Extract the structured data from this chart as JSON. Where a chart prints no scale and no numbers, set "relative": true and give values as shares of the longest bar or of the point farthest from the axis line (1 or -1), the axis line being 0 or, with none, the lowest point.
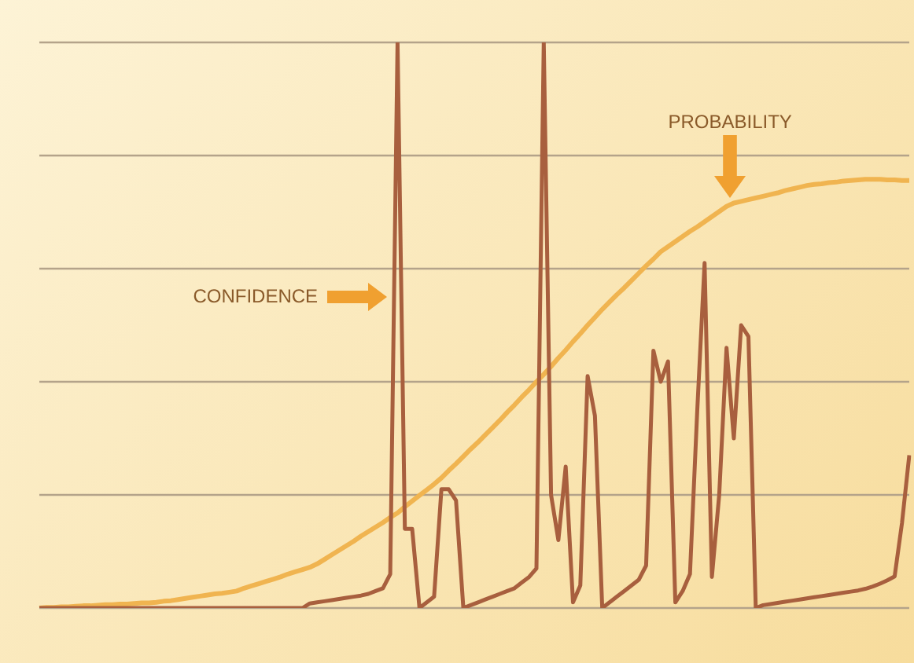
{
  "chart_data": {
    "type": "line",
    "relative": true,
    "legend": false,
    "ref_lines": [
      {
        "axis": "y",
        "value": 0,
        "color": "#b4a38a"
      },
      {
        "axis": "y",
        "value": 0.2,
        "color": "#b4a38a"
      },
      {
        "axis": "y",
        "value": 0.4,
        "color": "#b4a38a"
      },
      {
        "axis": "y",
        "value": 0.6,
        "color": "#b4a38a"
      },
      {
        "axis": "y",
        "value": 0.8,
        "color": "#b4a38a"
      },
      {
        "axis": "y",
        "value": 1,
        "color": "#b4a38a"
      }
    ],
    "marker": "none",
    "categories": [
      null,
      null,
      null,
      null,
      null,
      null,
      null,
      null,
      null,
      null,
      null,
      null,
      null,
      null,
      null,
      null,
      null,
      null,
      null,
      null,
      null,
      null,
      null,
      null,
      null,
      null,
      null,
      null,
      null,
      null,
      null,
      null,
      null,
      null,
      null,
      null,
      null,
      null,
      null,
      null,
      null,
      null,
      null,
      null,
      null,
      null,
      null,
      null,
      null,
      null,
      null,
      null,
      null,
      null,
      null,
      null,
      null,
      null,
      null,
      null,
      null,
      null,
      null,
      null,
      null,
      null,
      null,
      null,
      null,
      null,
      null,
      null,
      null,
      null,
      null,
      null,
      null,
      null,
      null,
      null,
      null,
      null,
      null,
      null,
      null,
      null,
      null,
      null,
      null,
      null,
      null,
      null,
      null,
      null,
      null,
      null,
      null,
      null,
      null,
      null,
      null,
      null,
      null,
      null,
      null,
      null,
      null,
      null,
      null,
      null,
      null,
      null,
      null,
      null,
      null,
      null,
      null,
      null,
      null,
      null
    ],
    "series": [
      {
        "color": "#a85f3e",
        "values": [
          0,
          0,
          0,
          0,
          0,
          0,
          0,
          0,
          0,
          0,
          0,
          0,
          0,
          0,
          0,
          0,
          0,
          0,
          0,
          0,
          0,
          0,
          0,
          0,
          0,
          0,
          0,
          0,
          0,
          0,
          0,
          0,
          0,
          0,
          0,
          0,
          0,
          0.008,
          0.01,
          0.012,
          0.014,
          0.016,
          0.018,
          0.02,
          0.022,
          0.025,
          0.03,
          0.035,
          0.06,
          1.0,
          0.14,
          0.14,
          0,
          0.01,
          0.02,
          0.21,
          0.21,
          0.19,
          0,
          0.005,
          0.01,
          0.015,
          0.02,
          0.025,
          0.03,
          0.035,
          0.045,
          0.055,
          0.07,
          1.0,
          0.2,
          0.12,
          0.25,
          0.01,
          0.04,
          0.41,
          0.34,
          0,
          0.01,
          0.02,
          0.03,
          0.04,
          0.05,
          0.075,
          0.455,
          0.4,
          0.436,
          0.01,
          0.03,
          0.06,
          0.35,
          0.61,
          0.055,
          0.2,
          0.46,
          0.3,
          0.5,
          0.48,
          0,
          0.005,
          0.007,
          0.009,
          0.011,
          0.013,
          0.015,
          0.017,
          0.019,
          0.021,
          0.023,
          0.025,
          0.027,
          0.029,
          0.031,
          0.034,
          0.038,
          0.043,
          0.049,
          0.056,
          0.15,
          0.27
        ]
      },
      {
        "color": "#f0b450",
        "values": [
          0,
          0.001,
          0.001,
          0.002,
          0.002,
          0.003,
          0.004,
          0.004,
          0.005,
          0.006,
          0.006,
          0.007,
          0.007,
          0.008,
          0.009,
          0.009,
          0.01,
          0.012,
          0.013,
          0.015,
          0.017,
          0.019,
          0.021,
          0.023,
          0.025,
          0.026,
          0.028,
          0.03,
          0.035,
          0.039,
          0.043,
          0.047,
          0.051,
          0.055,
          0.06,
          0.064,
          0.068,
          0.072,
          0.078,
          0.086,
          0.094,
          0.102,
          0.11,
          0.118,
          0.127,
          0.135,
          0.143,
          0.151,
          0.16,
          0.168,
          0.179,
          0.189,
          0.199,
          0.209,
          0.219,
          0.23,
          0.243,
          0.255,
          0.268,
          0.281,
          0.293,
          0.306,
          0.319,
          0.332,
          0.346,
          0.359,
          0.373,
          0.386,
          0.4,
          0.413,
          0.427,
          0.442,
          0.456,
          0.471,
          0.485,
          0.5,
          0.514,
          0.528,
          0.541,
          0.554,
          0.566,
          0.579,
          0.592,
          0.605,
          0.617,
          0.63,
          0.639,
          0.648,
          0.657,
          0.666,
          0.674,
          0.683,
          0.692,
          0.701,
          0.71,
          0.716,
          0.719,
          0.722,
          0.725,
          0.728,
          0.731,
          0.734,
          0.738,
          0.741,
          0.744,
          0.747,
          0.749,
          0.75,
          0.752,
          0.753,
          0.755,
          0.756,
          0.757,
          0.758,
          0.758,
          0.758,
          0.757,
          0.757,
          0.756,
          0.756
        ]
      }
    ],
    "annotations": [
      "CONFIDENCE",
      "PROBABILITY"
    ]
  }
}
